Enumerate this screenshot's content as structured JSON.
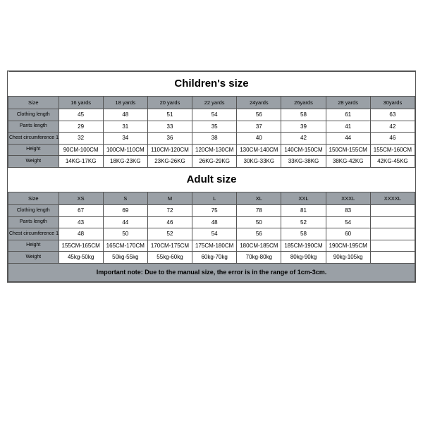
{
  "colors": {
    "header_bg": "#9aa0a6",
    "border": "#555555",
    "text": "#000000",
    "bg": "#ffffff"
  },
  "children": {
    "title": "Children's size",
    "headers": [
      "Size",
      "16 yards",
      "18 yards",
      "20 yards",
      "22 yards",
      "24yards",
      "26yards",
      "28 yards",
      "30yards"
    ],
    "rows": [
      {
        "label": "Clothing length",
        "cells": [
          "45",
          "48",
          "51",
          "54",
          "56",
          "58",
          "61",
          "63"
        ]
      },
      {
        "label": "Pants length",
        "cells": [
          "29",
          "31",
          "33",
          "35",
          "37",
          "39",
          "41",
          "42"
        ]
      },
      {
        "label": "Chest circumference 1/2",
        "cells": [
          "32",
          "34",
          "36",
          "38",
          "40",
          "42",
          "44",
          "46"
        ]
      },
      {
        "label": "Height",
        "cells": [
          "90CM-100CM",
          "100CM-110CM",
          "110CM-120CM",
          "120CM-130CM",
          "130CM-140CM",
          "140CM-150CM",
          "150CM-155CM",
          "155CM-160CM"
        ]
      },
      {
        "label": "Weight",
        "cells": [
          "14KG-17KG",
          "18KG-23KG",
          "23KG-26KG",
          "26KG-29KG",
          "30KG-33KG",
          "33KG-38KG",
          "38KG-42KG",
          "42KG-45KG"
        ]
      }
    ]
  },
  "adult": {
    "title": "Adult size",
    "headers": [
      "Size",
      "XS",
      "S",
      "M",
      "L",
      "XL",
      "XXL",
      "XXXL",
      "XXXXL"
    ],
    "rows": [
      {
        "label": "Clothing length",
        "cells": [
          "67",
          "69",
          "72",
          "75",
          "78",
          "81",
          "83",
          ""
        ]
      },
      {
        "label": "Pants length",
        "cells": [
          "43",
          "44",
          "46",
          "48",
          "50",
          "52",
          "54",
          ""
        ]
      },
      {
        "label": "Chest circumference 1/2",
        "cells": [
          "48",
          "50",
          "52",
          "54",
          "56",
          "58",
          "60",
          ""
        ]
      },
      {
        "label": "Height",
        "cells": [
          "155CM-165CM",
          "165CM-170CM",
          "170CM-175CM",
          "175CM-180CM",
          "180CM-185CM",
          "185CM-190CM",
          "190CM-195CM",
          ""
        ]
      },
      {
        "label": "Weight",
        "cells": [
          "45kg-50kg",
          "50kg-55kg",
          "55kg-60kg",
          "60kg-70kg",
          "70kg-80kg",
          "80kg-90kg",
          "90kg-105kg",
          ""
        ]
      }
    ]
  },
  "note": "Important note: Due to the manual size, the error is in the range of 1cm-3cm."
}
